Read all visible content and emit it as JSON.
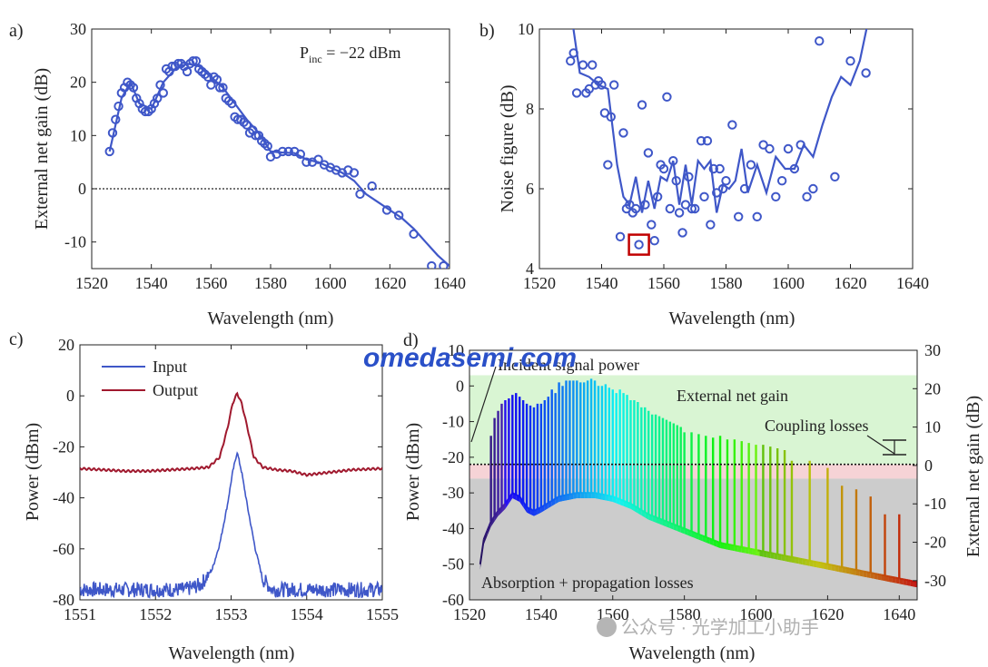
{
  "colors": {
    "blue": "#3f57c8",
    "red": "#a0192e",
    "gain_zone": "#d9f5d3",
    "coupling_zone": "#f6d3d6",
    "loss_zone": "#cccccc",
    "marker_box": "#c00000",
    "watermark": "#2a50c8"
  },
  "watermark": "omedasemi.com",
  "wechat": "公众号 · 光学加工小助手",
  "chart_data": [
    {
      "panel": "a)",
      "type": "scatter+line",
      "annotation": "P",
      "annotation_sub": "inc",
      "annotation_rest": " = −22 dBm",
      "xlabel": "Wavelength (nm)",
      "ylabel": "External net gain (dB)",
      "xlim": [
        1520,
        1640
      ],
      "ylim": [
        -15,
        30
      ],
      "xticks": [
        1520,
        1540,
        1560,
        1580,
        1600,
        1620,
        1640
      ],
      "yticks": [
        -10,
        0,
        10,
        20,
        30
      ],
      "reference_line": 0,
      "markers": {
        "x": [
          1526,
          1527,
          1528,
          1529,
          1530,
          1531,
          1532,
          1533,
          1534,
          1535,
          1536,
          1537,
          1538,
          1539,
          1540,
          1541,
          1542,
          1543,
          1544,
          1545,
          1546,
          1547,
          1548,
          1549,
          1550,
          1551,
          1552,
          1553,
          1554,
          1555,
          1556,
          1557,
          1558,
          1559,
          1560,
          1561,
          1562,
          1563,
          1564,
          1565,
          1566,
          1567,
          1568,
          1569,
          1570,
          1571,
          1572,
          1573,
          1574,
          1575,
          1576,
          1577,
          1578,
          1579,
          1580,
          1582,
          1584,
          1586,
          1588,
          1590,
          1592,
          1594,
          1596,
          1598,
          1600,
          1602,
          1604,
          1606,
          1608,
          1610,
          1614,
          1619,
          1623,
          1628,
          1634,
          1638
        ],
        "y": [
          7,
          10.5,
          13,
          15.5,
          18,
          19,
          20,
          19.5,
          19,
          17,
          16,
          15,
          14.5,
          14.5,
          15,
          16,
          17,
          19.5,
          18,
          22.5,
          22,
          23,
          23,
          23.5,
          23.5,
          23,
          22,
          23.5,
          24,
          24,
          22.5,
          22,
          21.5,
          21,
          19.5,
          21,
          20.5,
          19,
          19,
          17,
          16.5,
          16,
          13.5,
          13,
          13,
          12.5,
          12,
          10.5,
          11,
          10,
          10,
          9,
          8.5,
          8,
          6,
          6.5,
          7,
          7,
          7,
          6.5,
          5,
          5,
          5.5,
          4.5,
          4,
          3.5,
          3,
          3.5,
          3,
          -1,
          0.5,
          -4,
          -5,
          -8.5,
          -14.5,
          -14.5
        ]
      },
      "line": {
        "x": [
          1526,
          1530,
          1533,
          1536,
          1540,
          1544,
          1548,
          1552,
          1556,
          1560,
          1564,
          1568,
          1572,
          1576,
          1580,
          1584,
          1588,
          1592,
          1596,
          1600,
          1604,
          1608,
          1612,
          1616,
          1620,
          1624,
          1628,
          1632,
          1636,
          1640
        ],
        "y": [
          7,
          17,
          20,
          16,
          15,
          20,
          22.5,
          23.5,
          23,
          21,
          19,
          16,
          13,
          10.5,
          7,
          6.8,
          6.7,
          5.5,
          5,
          4,
          3,
          1.5,
          -1,
          -2.5,
          -4,
          -5.5,
          -7.5,
          -10,
          -12.5,
          -14.5
        ]
      }
    },
    {
      "panel": "b)",
      "type": "scatter+line",
      "xlabel": "Wavelength (nm)",
      "ylabel": "Noise figure (dB)",
      "xlim": [
        1520,
        1640
      ],
      "ylim": [
        4,
        10
      ],
      "xticks": [
        1520,
        1540,
        1560,
        1580,
        1600,
        1620,
        1640
      ],
      "yticks": [
        4,
        6,
        8,
        10
      ],
      "highlight": {
        "x": 1552,
        "y": 4.6
      },
      "markers": {
        "x": [
          1530,
          1531,
          1532,
          1534,
          1535,
          1536,
          1537,
          1538,
          1539,
          1540,
          1541,
          1542,
          1543,
          1544,
          1546,
          1547,
          1548,
          1549,
          1550,
          1551,
          1552,
          1553,
          1554,
          1555,
          1556,
          1557,
          1558,
          1559,
          1560,
          1561,
          1562,
          1563,
          1564,
          1565,
          1566,
          1567,
          1568,
          1569,
          1570,
          1572,
          1573,
          1574,
          1575,
          1576,
          1577,
          1578,
          1579,
          1580,
          1582,
          1584,
          1586,
          1588,
          1590,
          1592,
          1594,
          1596,
          1598,
          1600,
          1602,
          1604,
          1606,
          1608,
          1610,
          1615,
          1620,
          1625
        ],
        "y": [
          9.2,
          9.4,
          8.4,
          9.1,
          8.4,
          8.5,
          9.1,
          8.6,
          8.7,
          8.6,
          7.9,
          6.6,
          7.8,
          8.6,
          4.8,
          7.4,
          5.5,
          5.6,
          5.4,
          5.5,
          4.6,
          8.1,
          5.6,
          6.9,
          5.1,
          4.7,
          5.8,
          6.6,
          6.5,
          8.3,
          5.5,
          6.7,
          6.2,
          5.4,
          4.9,
          5.6,
          6.3,
          5.5,
          5.5,
          7.2,
          5.8,
          7.2,
          5.1,
          6.5,
          5.9,
          6.5,
          6,
          6.2,
          7.6,
          5.3,
          6.0,
          6.6,
          5.3,
          7.1,
          7.0,
          5.8,
          6.2,
          7.0,
          6.5,
          7.1,
          5.8,
          6.0,
          9.7,
          6.3,
          9.2,
          8.9
        ]
      },
      "line": {
        "x": [
          1530,
          1533,
          1536,
          1539,
          1542,
          1545,
          1547,
          1549,
          1551,
          1553,
          1555,
          1557,
          1559,
          1561,
          1563,
          1565,
          1567,
          1569,
          1571,
          1573,
          1575,
          1577,
          1579,
          1581,
          1583,
          1585,
          1587,
          1590,
          1593,
          1596,
          1599,
          1602,
          1605,
          1608,
          1611,
          1614,
          1617,
          1620,
          1623,
          1626
        ],
        "y": [
          10.5,
          8.9,
          8.8,
          8.6,
          8.5,
          6.6,
          5.8,
          5.6,
          6.3,
          5.4,
          6.2,
          5.5,
          6.3,
          6.2,
          6.7,
          5.6,
          6.6,
          5.6,
          6.7,
          6.5,
          6.7,
          5.4,
          6.1,
          6.0,
          6.2,
          7.0,
          5.9,
          6.6,
          5.9,
          6.8,
          6.5,
          6.5,
          7.1,
          6.8,
          7.6,
          8.3,
          8.8,
          8.6,
          9.2,
          10.3
        ]
      }
    },
    {
      "panel": "c)",
      "type": "line",
      "xlabel": "Wavelength (nm)",
      "ylabel": "Power (dBm)",
      "xlim": [
        1551,
        1555
      ],
      "ylim": [
        -80,
        20
      ],
      "xticks": [
        1551,
        1552,
        1553,
        1554,
        1555
      ],
      "yticks": [
        -80,
        -60,
        -40,
        -20,
        0,
        20
      ],
      "legend": "top-left",
      "series": [
        {
          "name": "Input",
          "x": [
            1551,
            1551.5,
            1552,
            1552.4,
            1552.6,
            1552.75,
            1552.85,
            1552.95,
            1553.02,
            1553.08,
            1553.14,
            1553.22,
            1553.32,
            1553.42,
            1553.55,
            1553.8,
            1554.2,
            1554.6,
            1555
          ],
          "y": [
            -76,
            -76,
            -76,
            -76,
            -74,
            -68,
            -58,
            -43,
            -30,
            -22,
            -30,
            -44,
            -60,
            -72,
            -76,
            -76,
            -76,
            -76,
            -76
          ]
        },
        {
          "name": "Output",
          "x": [
            1551,
            1551.3,
            1551.6,
            1551.9,
            1552.2,
            1552.5,
            1552.7,
            1552.85,
            1552.95,
            1553.02,
            1553.08,
            1553.14,
            1553.22,
            1553.3,
            1553.42,
            1553.6,
            1553.8,
            1554.0,
            1554.3,
            1554.6,
            1555
          ],
          "y": [
            -28.5,
            -29,
            -29.5,
            -29.5,
            -29,
            -28.5,
            -28,
            -24,
            -13,
            -3,
            1,
            -3,
            -13,
            -24,
            -28,
            -29,
            -29.5,
            -31,
            -30,
            -29,
            -28.5
          ]
        }
      ],
      "input_noise_amp": 3
    },
    {
      "panel": "d)",
      "type": "spectrum-comb",
      "xlabel": "Wavelength (nm)",
      "ylabel_left": "Power (dBm)",
      "ylabel_right": "External net gain (dB)",
      "xlim": [
        1520,
        1645
      ],
      "ylim_left": [
        -60,
        10
      ],
      "ylim_right": [
        -35,
        30
      ],
      "xticks": [
        1520,
        1540,
        1560,
        1580,
        1600,
        1620,
        1640
      ],
      "yticks_left": [
        -60,
        -50,
        -40,
        -30,
        -20,
        -10,
        0,
        10
      ],
      "yticks_right": [
        -30,
        -20,
        -10,
        0,
        10,
        20,
        30
      ],
      "incident_power_level": -22,
      "gain_zone_top": 3,
      "coupling_loss_level": -26,
      "labels": {
        "incident": "Incident signal power",
        "gain": "External net gain",
        "coupling": "Coupling losses",
        "absorption": "Absorption + propagation losses"
      },
      "floor": {
        "x": [
          1523,
          1524,
          1526,
          1528,
          1530,
          1532,
          1534,
          1536,
          1538,
          1540,
          1545,
          1550,
          1555,
          1560,
          1565,
          1570,
          1575,
          1580,
          1590,
          1600,
          1610,
          1620,
          1630,
          1640,
          1645
        ],
        "y": [
          -50,
          -43,
          -38,
          -35,
          -33,
          -30,
          -31,
          -34,
          -35,
          -34,
          -31,
          -30,
          -30,
          -31,
          -33,
          -36,
          -38,
          -40,
          -44,
          -46,
          -48,
          -50,
          -52,
          -54,
          -55
        ]
      },
      "peaks": {
        "x": [
          1526,
          1527,
          1528,
          1529,
          1530,
          1531,
          1532,
          1533,
          1534,
          1535,
          1536,
          1537,
          1538,
          1539,
          1540,
          1541,
          1542,
          1543,
          1544,
          1545,
          1546,
          1547,
          1548,
          1549,
          1550,
          1551,
          1552,
          1553,
          1554,
          1555,
          1556,
          1557,
          1558,
          1559,
          1560,
          1561,
          1562,
          1563,
          1564,
          1565,
          1566,
          1567,
          1568,
          1569,
          1570,
          1571,
          1572,
          1573,
          1574,
          1575,
          1576,
          1577,
          1578,
          1579,
          1580,
          1582,
          1584,
          1586,
          1588,
          1590,
          1592,
          1594,
          1596,
          1598,
          1600,
          1602,
          1604,
          1606,
          1608,
          1610,
          1615,
          1620,
          1624,
          1628,
          1632,
          1636,
          1640
        ],
        "y": [
          -14,
          -9,
          -7,
          -5,
          -4,
          -3.5,
          -2.5,
          -2,
          -3,
          -4,
          -5,
          -5.5,
          -6,
          -5,
          -5,
          -4,
          -3,
          -1,
          -2,
          1,
          0,
          1.5,
          1.5,
          1.5,
          1.5,
          1,
          1,
          1.5,
          2,
          1.5,
          0,
          0,
          0.5,
          -0.5,
          -1,
          -2,
          -1,
          -2,
          -2.5,
          -4,
          -4,
          -4.5,
          -6,
          -6,
          -7,
          -8,
          -8,
          -8.5,
          -9,
          -9.5,
          -10,
          -10.5,
          -11,
          -11.5,
          -13,
          -13,
          -13.5,
          -14,
          -14.5,
          -14,
          -15,
          -15,
          -15.5,
          -16,
          -16.5,
          -16.5,
          -17,
          -17.5,
          -18,
          -21,
          -21,
          -23,
          -28,
          -29,
          -31,
          -36,
          -36
        ]
      }
    }
  ]
}
